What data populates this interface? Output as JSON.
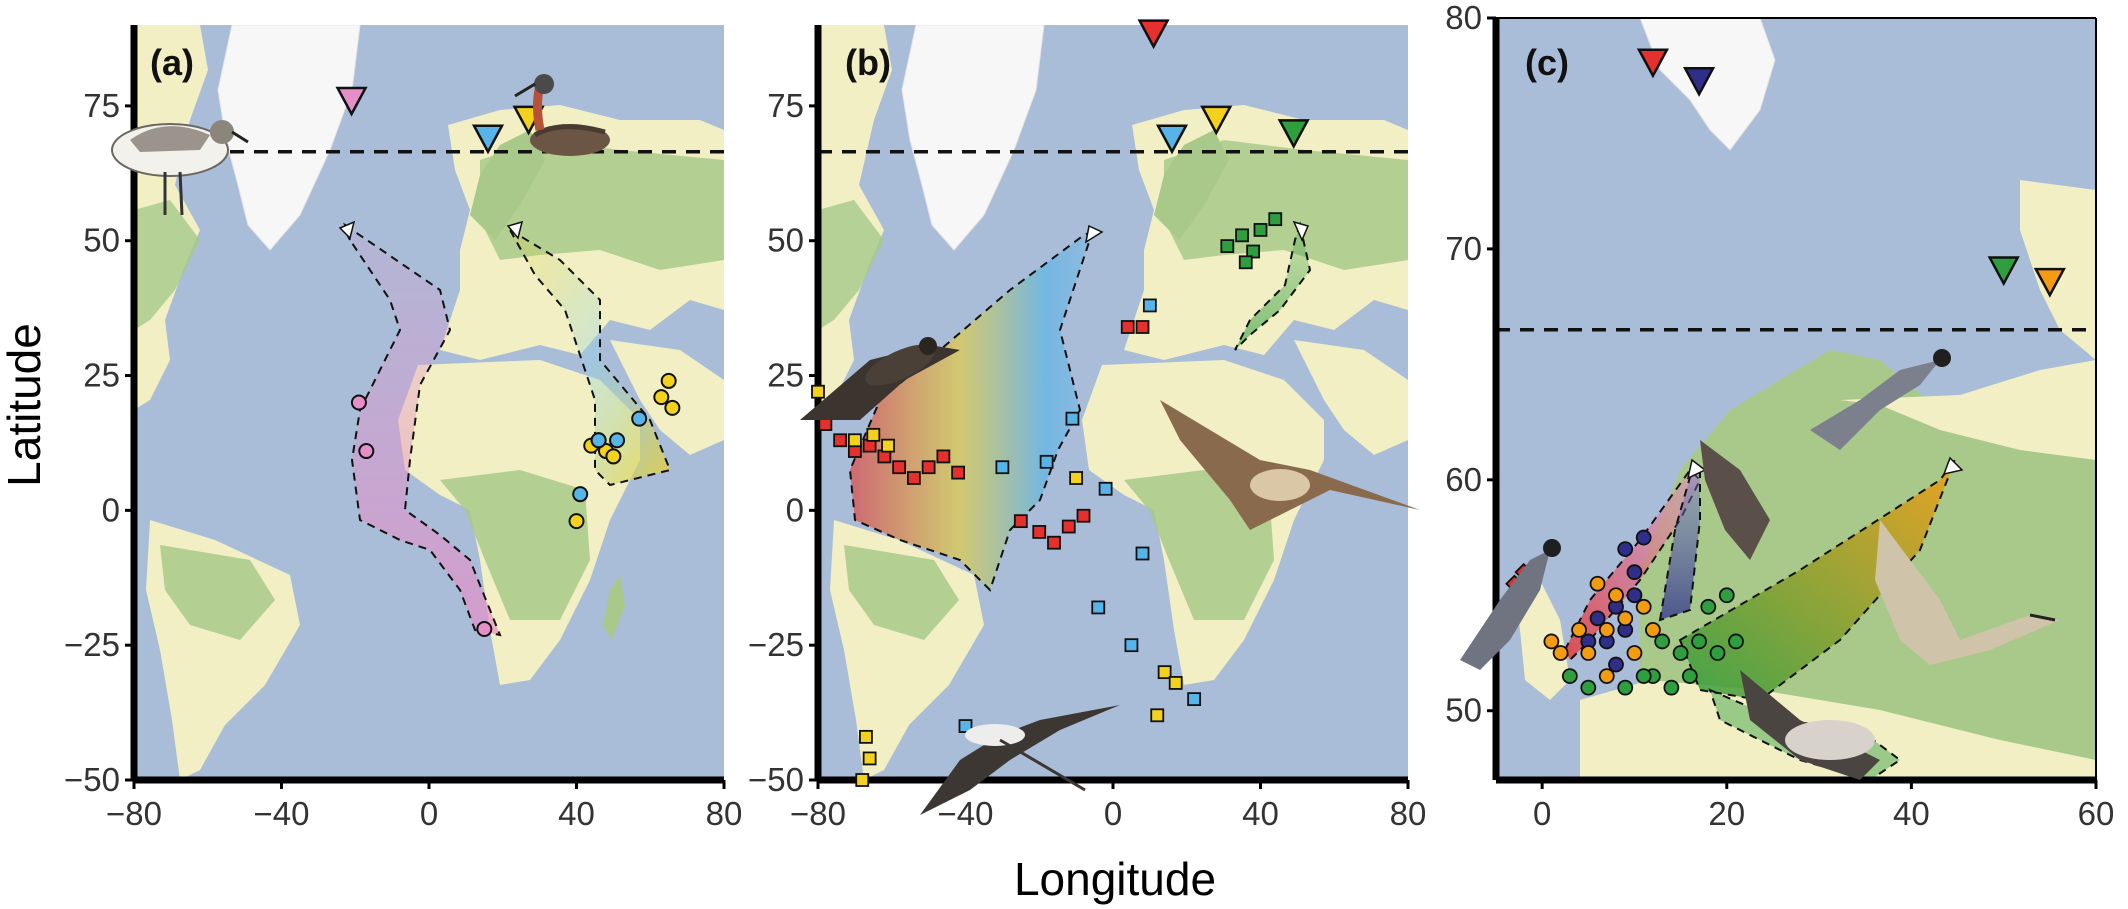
{
  "figure": {
    "x_axis_title": "Longitude",
    "y_axis_title": "Latitude",
    "colors": {
      "ocean": "#a9bdd8",
      "land": "#f1efc3",
      "forest": "#a8c98a",
      "ice": "#f7f7f7",
      "pink": "#e58fc8",
      "yellow": "#f2d21c",
      "lightblue": "#56b4e9",
      "red": "#e6302d",
      "green": "#2f9e3f",
      "navy": "#2f2f8a",
      "orange": "#f39c12"
    }
  },
  "panels": [
    {
      "label": "(a)",
      "xlim": [
        -80,
        80
      ],
      "ylim": [
        -50,
        90
      ],
      "xticks": [
        -80,
        -40,
        0,
        40,
        80
      ],
      "yticks": [
        -50,
        -25,
        0,
        25,
        50,
        75
      ],
      "xtick_labels": [
        "−80",
        "−40",
        "0",
        "40",
        "80"
      ],
      "ytick_labels": [
        "−50",
        "−25",
        "0",
        "25",
        "50",
        "75"
      ],
      "reference_latitude": 66.5,
      "breeding_sites": [
        {
          "lon": -21,
          "lat": 73.5,
          "color": "pink"
        },
        {
          "lon": 27,
          "lat": 70,
          "color": "yellow"
        },
        {
          "lon": 16,
          "lat": 66.5,
          "color": "lightblue"
        }
      ],
      "wintering_points": [
        {
          "lon": -19,
          "lat": 20,
          "color": "pink"
        },
        {
          "lon": -17,
          "lat": 11,
          "color": "pink"
        },
        {
          "lon": 15,
          "lat": -22,
          "color": "pink"
        },
        {
          "lon": 65,
          "lat": 24,
          "color": "yellow"
        },
        {
          "lon": 66,
          "lat": 19,
          "color": "yellow"
        },
        {
          "lon": 63,
          "lat": 21,
          "color": "yellow"
        },
        {
          "lon": 44,
          "lat": 12,
          "color": "yellow"
        },
        {
          "lon": 48,
          "lat": 11,
          "color": "yellow"
        },
        {
          "lon": 50,
          "lat": 10,
          "color": "yellow"
        },
        {
          "lon": 46,
          "lat": 13,
          "color": "yellow"
        },
        {
          "lon": 40,
          "lat": -2,
          "color": "yellow"
        },
        {
          "lon": 57,
          "lat": 17,
          "color": "lightblue"
        },
        {
          "lon": 46,
          "lat": 13,
          "color": "lightblue"
        },
        {
          "lon": 51,
          "lat": 13,
          "color": "lightblue"
        },
        {
          "lon": 41,
          "lat": 3,
          "color": "lightblue"
        }
      ]
    },
    {
      "label": "(b)",
      "xlim": [
        -80,
        80
      ],
      "ylim": [
        -50,
        90
      ],
      "xticks": [
        -80,
        -40,
        0,
        40,
        80
      ],
      "yticks": [
        -50,
        -25,
        0,
        25,
        50,
        75
      ],
      "xtick_labels": [
        "−80",
        "−40",
        "0",
        "40",
        "80"
      ],
      "ytick_labels": [
        "−50",
        "−25",
        "0",
        "25",
        "50",
        "75"
      ],
      "reference_latitude": 66.5,
      "breeding_sites": [
        {
          "lon": 11,
          "lat": 86,
          "color": "red"
        },
        {
          "lon": 28,
          "lat": 70,
          "color": "yellow"
        },
        {
          "lon": 49,
          "lat": 67.5,
          "color": "green"
        },
        {
          "lon": 16,
          "lat": 66.5,
          "color": "lightblue"
        }
      ],
      "wintering_points": [
        {
          "lon": -78,
          "lat": 16,
          "color": "red"
        },
        {
          "lon": -74,
          "lat": 13,
          "color": "red"
        },
        {
          "lon": -70,
          "lat": 11,
          "color": "red"
        },
        {
          "lon": -66,
          "lat": 12,
          "color": "red"
        },
        {
          "lon": -62,
          "lat": 10,
          "color": "red"
        },
        {
          "lon": -58,
          "lat": 8,
          "color": "red"
        },
        {
          "lon": -54,
          "lat": 6,
          "color": "red"
        },
        {
          "lon": -50,
          "lat": 8,
          "color": "red"
        },
        {
          "lon": -46,
          "lat": 10,
          "color": "red"
        },
        {
          "lon": -42,
          "lat": 7,
          "color": "red"
        },
        {
          "lon": -25,
          "lat": -2,
          "color": "red"
        },
        {
          "lon": -20,
          "lat": -4,
          "color": "red"
        },
        {
          "lon": -16,
          "lat": -6,
          "color": "red"
        },
        {
          "lon": -12,
          "lat": -3,
          "color": "red"
        },
        {
          "lon": -8,
          "lat": -1,
          "color": "red"
        },
        {
          "lon": 4,
          "lat": 34,
          "color": "red"
        },
        {
          "lon": 8,
          "lat": 34,
          "color": "red"
        },
        {
          "lon": -80,
          "lat": 22,
          "color": "yellow"
        },
        {
          "lon": -70,
          "lat": 13,
          "color": "yellow"
        },
        {
          "lon": -65,
          "lat": 14,
          "color": "yellow"
        },
        {
          "lon": -61,
          "lat": 12,
          "color": "yellow"
        },
        {
          "lon": -10,
          "lat": 6,
          "color": "yellow"
        },
        {
          "lon": 14,
          "lat": -30,
          "color": "yellow"
        },
        {
          "lon": 17,
          "lat": -32,
          "color": "yellow"
        },
        {
          "lon": 12,
          "lat": -38,
          "color": "yellow"
        },
        {
          "lon": -67,
          "lat": -42,
          "color": "yellow"
        },
        {
          "lon": -66,
          "lat": -46,
          "color": "yellow"
        },
        {
          "lon": -68,
          "lat": -50,
          "color": "yellow"
        },
        {
          "lon": -11,
          "lat": 17,
          "color": "lightblue"
        },
        {
          "lon": -18,
          "lat": 9,
          "color": "lightblue"
        },
        {
          "lon": -30,
          "lat": 8,
          "color": "lightblue"
        },
        {
          "lon": -2,
          "lat": 4,
          "color": "lightblue"
        },
        {
          "lon": 8,
          "lat": -8,
          "color": "lightblue"
        },
        {
          "lon": -4,
          "lat": -18,
          "color": "lightblue"
        },
        {
          "lon": 5,
          "lat": -25,
          "color": "lightblue"
        },
        {
          "lon": -40,
          "lat": -40,
          "color": "lightblue"
        },
        {
          "lon": 22,
          "lat": -35,
          "color": "lightblue"
        },
        {
          "lon": 10,
          "lat": 38,
          "color": "lightblue"
        },
        {
          "lon": 38,
          "lat": 48,
          "color": "green"
        },
        {
          "lon": 40,
          "lat": 52,
          "color": "green"
        },
        {
          "lon": 35,
          "lat": 51,
          "color": "green"
        },
        {
          "lon": 44,
          "lat": 54,
          "color": "green"
        },
        {
          "lon": 31,
          "lat": 49,
          "color": "green"
        },
        {
          "lon": 36,
          "lat": 46,
          "color": "green"
        }
      ]
    },
    {
      "label": "(c)",
      "xlim": [
        -5,
        60
      ],
      "ylim": [
        47,
        80
      ],
      "xticks": [
        0,
        20,
        40,
        60
      ],
      "yticks": [
        50,
        60,
        70,
        80
      ],
      "xtick_labels": [
        "0",
        "20",
        "40",
        "60"
      ],
      "ytick_labels": [
        "50",
        "60",
        "70",
        "80"
      ],
      "reference_latitude": 66.5,
      "breeding_sites": [
        {
          "lon": 12,
          "lat": 77.5,
          "color": "red"
        },
        {
          "lon": 17,
          "lat": 76.7,
          "color": "navy"
        },
        {
          "lon": 50,
          "lat": 68.5,
          "color": "green"
        },
        {
          "lon": 55,
          "lat": 68,
          "color": "orange"
        }
      ],
      "wintering_points": [
        {
          "lon": -3,
          "lat": 55.5,
          "color": "red"
        },
        {
          "lon": -2,
          "lat": 56,
          "color": "red"
        },
        {
          "lon": 9,
          "lat": 57,
          "color": "navy"
        },
        {
          "lon": 10,
          "lat": 56,
          "color": "navy"
        },
        {
          "lon": 8,
          "lat": 54.5,
          "color": "navy"
        },
        {
          "lon": 7,
          "lat": 53,
          "color": "navy"
        },
        {
          "lon": 10,
          "lat": 55,
          "color": "navy"
        },
        {
          "lon": 11,
          "lat": 57.5,
          "color": "navy"
        },
        {
          "lon": 5,
          "lat": 53,
          "color": "navy"
        },
        {
          "lon": 8,
          "lat": 52,
          "color": "navy"
        },
        {
          "lon": 9,
          "lat": 53.5,
          "color": "navy"
        },
        {
          "lon": 6,
          "lat": 54,
          "color": "navy"
        },
        {
          "lon": 1,
          "lat": 53,
          "color": "orange"
        },
        {
          "lon": 2,
          "lat": 52.5,
          "color": "orange"
        },
        {
          "lon": 4,
          "lat": 53.5,
          "color": "orange"
        },
        {
          "lon": 5,
          "lat": 52.5,
          "color": "orange"
        },
        {
          "lon": 7,
          "lat": 53.5,
          "color": "orange"
        },
        {
          "lon": 8,
          "lat": 55,
          "color": "orange"
        },
        {
          "lon": 9,
          "lat": 54,
          "color": "orange"
        },
        {
          "lon": 10,
          "lat": 52.5,
          "color": "orange"
        },
        {
          "lon": 11,
          "lat": 54.5,
          "color": "orange"
        },
        {
          "lon": 12,
          "lat": 53.5,
          "color": "orange"
        },
        {
          "lon": 6,
          "lat": 55.5,
          "color": "orange"
        },
        {
          "lon": 7,
          "lat": 51.5,
          "color": "orange"
        },
        {
          "lon": 3,
          "lat": 51.5,
          "color": "green"
        },
        {
          "lon": 5,
          "lat": 51,
          "color": "green"
        },
        {
          "lon": 9,
          "lat": 51,
          "color": "green"
        },
        {
          "lon": 12,
          "lat": 51.5,
          "color": "green"
        },
        {
          "lon": 13,
          "lat": 53,
          "color": "green"
        },
        {
          "lon": 15,
          "lat": 52.5,
          "color": "green"
        },
        {
          "lon": 17,
          "lat": 53,
          "color": "green"
        },
        {
          "lon": 19,
          "lat": 52.5,
          "color": "green"
        },
        {
          "lon": 21,
          "lat": 53,
          "color": "green"
        },
        {
          "lon": 11,
          "lat": 51.5,
          "color": "green"
        },
        {
          "lon": 14,
          "lat": 51,
          "color": "green"
        },
        {
          "lon": 16,
          "lat": 51.5,
          "color": "green"
        },
        {
          "lon": 18,
          "lat": 54.5,
          "color": "green"
        },
        {
          "lon": 20,
          "lat": 55,
          "color": "green"
        }
      ]
    }
  ]
}
